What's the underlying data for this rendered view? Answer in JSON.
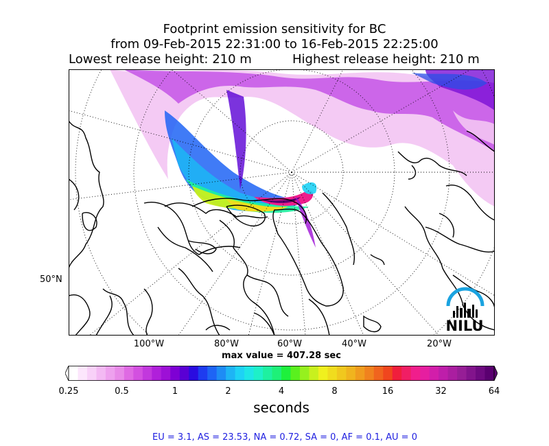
{
  "title": {
    "line1": "Footprint emission sensitivity for BC",
    "line2": "from 09-Feb-2015 22:31:00 to 16-Feb-2015 22:25:00",
    "lowest": "Lowest release height: 210 m",
    "highest": "Highest release height: 210 m"
  },
  "map": {
    "lon_labels": [
      "100°W",
      "80°W",
      "60°W",
      "40°W",
      "20°W"
    ],
    "lat_label": "50°N",
    "logo_text": "NILU",
    "logo_arc_color": "#1aa3e0"
  },
  "max_value": "max value = 407.28 sec",
  "colorbar": {
    "ticks": [
      "0.25",
      "0.5",
      "1",
      "2",
      "4",
      "8",
      "16",
      "32",
      "64"
    ],
    "label": "seconds",
    "colors": [
      "#ffffff",
      "#fce6fc",
      "#f8d1f8",
      "#f3b9f3",
      "#eea1ee",
      "#e88ae8",
      "#df6ae3",
      "#d350e0",
      "#c238dd",
      "#b020da",
      "#9d10d6",
      "#7e00d4",
      "#5a00d4",
      "#2a0ce0",
      "#1e3cf0",
      "#1e64f5",
      "#1e8cf5",
      "#1eb4f5",
      "#1ed2f5",
      "#1ee6e6",
      "#1ef0c8",
      "#1ef0a0",
      "#1ef078",
      "#1ef03c",
      "#5af01e",
      "#96f01e",
      "#c8f01e",
      "#f0f01e",
      "#f0dc1e",
      "#f0c81e",
      "#f0b41e",
      "#f09c1e",
      "#f0821e",
      "#f0641e",
      "#f0461e",
      "#f01e3c",
      "#f01e64",
      "#f01e8c",
      "#e61ea0",
      "#d21eaa",
      "#be1eaa",
      "#aa1ea0",
      "#961e96",
      "#82148c",
      "#6e0a80",
      "#5a0070"
    ]
  },
  "footer": "EU = 3.1,  AS = 23.53,  NA = 0.72,  SA = 0,  AF = 0.1,  AU = 0"
}
